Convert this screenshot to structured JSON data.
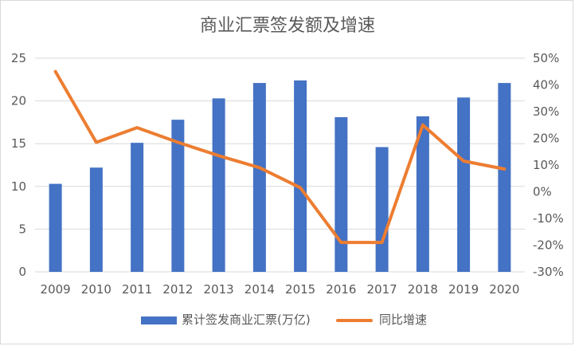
{
  "chart_data": {
    "type": "bar",
    "title": "商业汇票签发额及增速",
    "categories": [
      "2009",
      "2010",
      "2011",
      "2012",
      "2013",
      "2014",
      "2015",
      "2016",
      "2017",
      "2018",
      "2019",
      "2020"
    ],
    "series": [
      {
        "name": "累计签发商业汇票(万亿)",
        "type": "bar",
        "axis": "left",
        "values": [
          10.3,
          12.2,
          15.1,
          17.8,
          20.3,
          22.1,
          22.4,
          18.1,
          14.6,
          18.2,
          20.4,
          22.1
        ],
        "color": "#4472c4"
      },
      {
        "name": "同比增速",
        "type": "line",
        "axis": "right",
        "values": [
          45,
          18.5,
          24,
          18.5,
          13.5,
          9,
          1.5,
          -19,
          -19,
          25,
          11.5,
          8.5
        ],
        "color": "#ed7d31"
      }
    ],
    "y_left": {
      "min": 0,
      "max": 25,
      "ticks": [
        "0",
        "5",
        "10",
        "15",
        "20",
        "25"
      ]
    },
    "y_right": {
      "min": -30,
      "max": 50,
      "ticks": [
        "-30%",
        "-20%",
        "-10%",
        "0%",
        "10%",
        "20%",
        "30%",
        "40%",
        "50%"
      ]
    },
    "grid": true,
    "legend": "bottom"
  }
}
